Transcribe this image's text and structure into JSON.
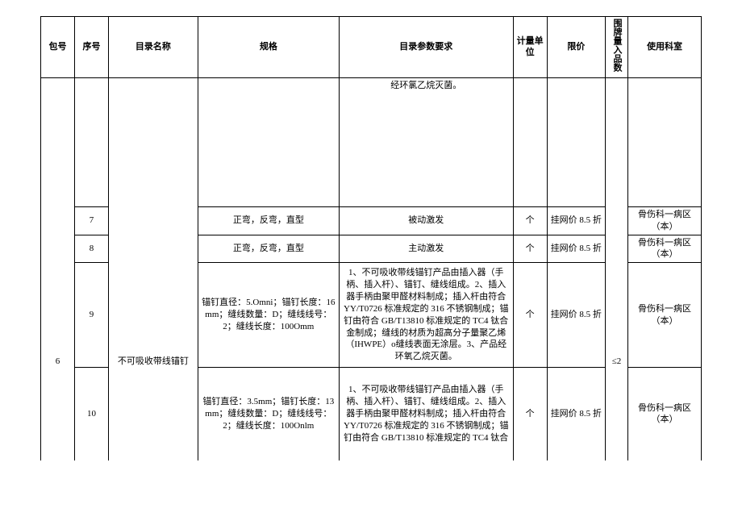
{
  "headers": {
    "pkg": "包号",
    "seq": "序号",
    "name": "目录名称",
    "spec": "规格",
    "param": "目录参数要求",
    "unit": "计量单位",
    "price": "限价",
    "count": "围牌量入品数",
    "dept": "使用科室"
  },
  "rows": {
    "r1": {
      "param": "经环氯乙烷灭菌。"
    },
    "r2": {
      "seq": "7",
      "spec": "正弯，反弯，直型",
      "param": "被动激发",
      "unit": "个",
      "price": "挂网价 8.5 折",
      "dept": "骨伤科一病区（本）"
    },
    "r3": {
      "seq": "8",
      "spec": "正弯，反弯，直型",
      "param": "主动激发",
      "unit": "个",
      "price": "挂网价 8.5 折",
      "dept": "骨伤科一病区（本）"
    },
    "r4": {
      "pkg": "6",
      "seq": "9",
      "name": "不可吸收带线锚钉",
      "spec": "锚钉直径：5.Omni；锚钉长度：16mm；缝线数量：D；缝线线号：2；缝线长度：100Omm",
      "param": "1、不可吸收带线锚钉产品由插入器（手柄、插入杆）、锚钉、缝线组成。2、插入器手柄由聚甲醛材料制成；插入杆由符合 YY/T0726 标准规定的 316 不锈钢制成；锚钉由符合 GB/T13810 标准规定的 TC4 钛合金制成；缝线的材质为超高分子量聚乙烯（IHWPE）o缝线表面无涂层。3、产品经环氧乙烷灭菌。",
      "unit": "个",
      "price": "挂网价 8.5 折",
      "count": "≤2",
      "dept": "骨伤科一病区（本）"
    },
    "r5": {
      "seq": "10",
      "spec": "锚钉直径：3.5mm；锚钉长度：13mm；缝线数量：D；缝线线号：2；缝线长度：100Onlm",
      "param": "1、不可吸收带线锚钉产品由插入器（手柄、插入杆）、锚钉、缝线组成。2、插入器手柄由聚甲醛材料制成；插入杆由符合 YY/T0726 标准规定的 316 不锈钢制成；锚钉由符合 GB/T13810 标准规定的 TC4 钛合",
      "unit": "个",
      "price": "挂网价 8.5 折",
      "dept": "骨伤科一病区（本）"
    }
  }
}
